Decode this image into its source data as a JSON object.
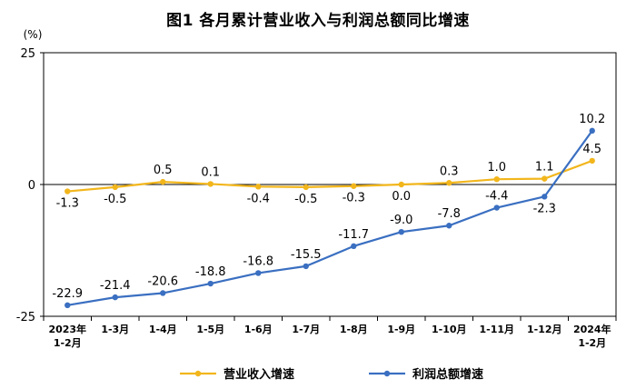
{
  "chart_data": {
    "type": "line",
    "title": "图1  各月累计营业收入与利润总额同比增速",
    "ylabel": "(%)",
    "ylim": [
      -25,
      25
    ],
    "yticks": [
      -25,
      0,
      25
    ],
    "grid": false,
    "legend_position": "bottom",
    "categories": [
      {
        "line1": "2023年",
        "line2": "1-2月"
      },
      {
        "line1": "1-3月",
        "line2": ""
      },
      {
        "line1": "1-4月",
        "line2": ""
      },
      {
        "line1": "1-5月",
        "line2": ""
      },
      {
        "line1": "1-6月",
        "line2": ""
      },
      {
        "line1": "1-7月",
        "line2": ""
      },
      {
        "line1": "1-8月",
        "line2": ""
      },
      {
        "line1": "1-9月",
        "line2": ""
      },
      {
        "line1": "1-10月",
        "line2": ""
      },
      {
        "line1": "1-11月",
        "line2": ""
      },
      {
        "line1": "1-12月",
        "line2": ""
      },
      {
        "line1": "2024年",
        "line2": "1-2月"
      }
    ],
    "series": [
      {
        "name": "营业收入增速",
        "color": "#F2B61C",
        "values": [
          -1.3,
          -0.5,
          0.5,
          0.1,
          -0.4,
          -0.5,
          -0.3,
          0.0,
          0.3,
          1.0,
          1.1,
          4.5
        ],
        "labels": [
          "-1.3",
          "-0.5",
          "0.5",
          "0.1",
          "-0.4",
          "-0.5",
          "-0.3",
          "0.0",
          "0.3",
          "1.0",
          "1.1",
          "4.5"
        ],
        "label_side": [
          "below",
          "below",
          "above",
          "above",
          "below",
          "below",
          "below",
          "below",
          "above",
          "above",
          "above",
          "above"
        ]
      },
      {
        "name": "利润总额增速",
        "color": "#3A6FC1",
        "values": [
          -22.9,
          -21.4,
          -20.6,
          -18.8,
          -16.8,
          -15.5,
          -11.7,
          -9.0,
          -7.8,
          -4.4,
          -2.3,
          10.2
        ],
        "labels": [
          "-22.9",
          "-21.4",
          "-20.6",
          "-18.8",
          "-16.8",
          "-15.5",
          "-11.7",
          "-9.0",
          "-7.8",
          "-4.4",
          "-2.3",
          "10.2"
        ],
        "label_side": [
          "above",
          "above",
          "above",
          "above",
          "above",
          "above",
          "above",
          "above",
          "above",
          "above",
          "below",
          "above"
        ]
      }
    ]
  }
}
